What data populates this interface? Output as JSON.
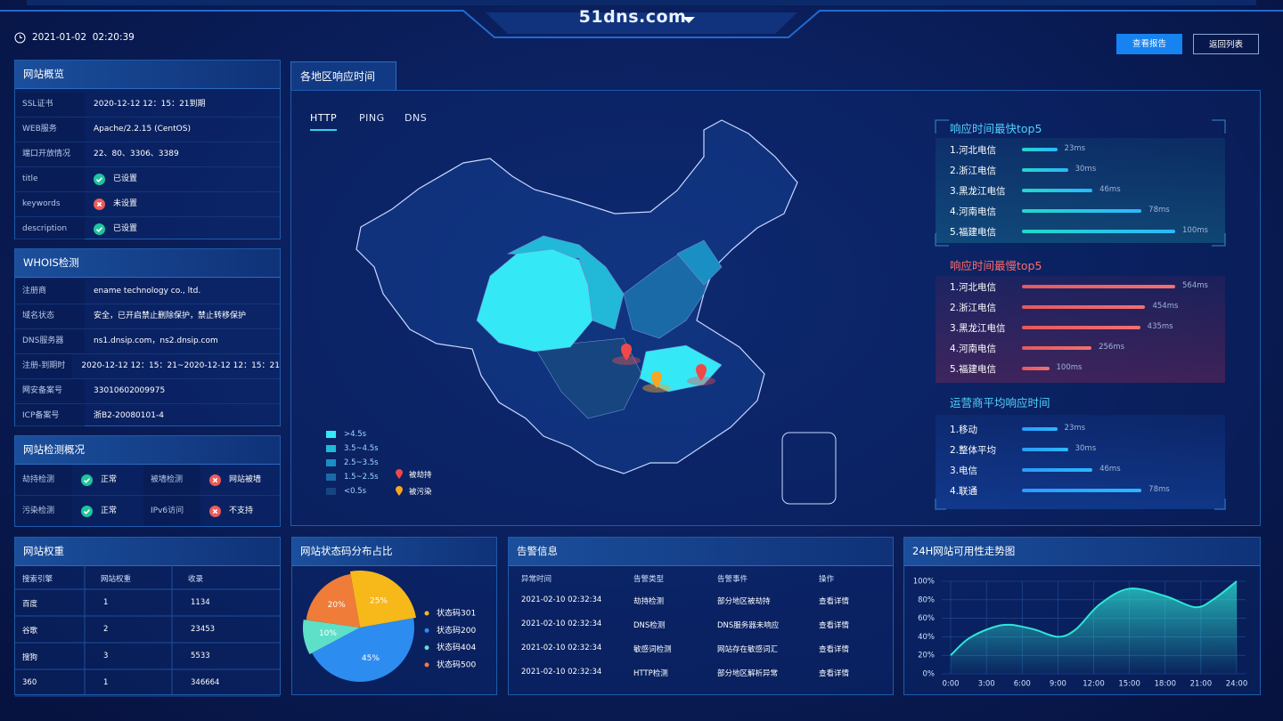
{
  "header": {
    "title": "51dns.com",
    "datetime": "2021-01-02  02:20:39",
    "buttons": [
      "查看报告",
      "返回列表"
    ]
  },
  "overview": {
    "title": "网站概览",
    "rows": [
      [
        "SSL证书",
        "2020-12-12 12：15：21到期"
      ],
      [
        "WEB服务",
        "Apache/2.2.15 (CentOS)"
      ],
      [
        "端口开放情况",
        "22、80、3306、3389"
      ],
      [
        "title",
        "已设置"
      ],
      [
        "keywords",
        "未设置"
      ],
      [
        "description",
        "已设置"
      ]
    ]
  },
  "whois": {
    "title": "WHOIS检测",
    "rows": [
      [
        "注册商",
        "ename technology co., ltd."
      ],
      [
        "域名状态",
        "安全，已开启禁止删除保护，禁止转移保护"
      ],
      [
        "DNS服务器",
        "ns1.dnsip.com，ns2.dnsip.com"
      ],
      [
        "注册-到期时间",
        "2020-12-12 12：15：21~2020-12-12 12：15：21"
      ],
      [
        "网安备案号",
        "33010602009975"
      ],
      [
        "ICP备案号",
        "浙B2-20080101-4"
      ]
    ]
  },
  "detection": {
    "title": "网站检测概况",
    "rows": [
      [
        "劫持检测",
        "正常",
        "被墙检测",
        "网站被墙"
      ],
      [
        "污染检测",
        "正常",
        "IPv6访问",
        "不支持"
      ]
    ]
  },
  "map": {
    "title": "各地区响应时间",
    "tabs": [
      "HTTP",
      "PING",
      "DNS"
    ],
    "legend": [
      ">4.5s",
      "3.5~4.5s",
      "2.5~3.5s",
      "1.5~2.5s",
      "<0.5s"
    ],
    "markers": [
      "被劫持",
      "被污染"
    ]
  },
  "weights": {
    "title": "网站权重",
    "columns": [
      "搜索引擎",
      "网站权重",
      "收录"
    ],
    "rows": [
      [
        "百度",
        1,
        1134
      ],
      [
        "谷歌",
        2,
        23453
      ],
      [
        "搜狗",
        3,
        5533
      ],
      [
        "360",
        1,
        346664
      ]
    ]
  },
  "alerts": {
    "title": "告警信息",
    "columns": [
      "异常时间",
      "告警类型",
      "告警事件",
      "操作"
    ],
    "rows": [
      [
        "2021-02-10 02:32:34",
        "劫持检测",
        "部分地区被劫持",
        "查看详情"
      ],
      [
        "2021-02-10 02:32:34",
        "DNS检测",
        "DNS服务器未响应",
        "查看详情"
      ],
      [
        "2021-02-10 02:32:34",
        "敏感词检测",
        "网站存在敏感词汇",
        "查看详情"
      ],
      [
        "2021-02-10 02:32:34",
        "HTTP检测",
        "部分地区解析异常",
        "查看详情"
      ]
    ]
  },
  "chart_data": [
    {
      "type": "bar",
      "title": "响应时间最快top5",
      "categories": [
        "1.河北电信",
        "2.浙江电信",
        "3.黑龙江电信",
        "4.河南电信",
        "5.福建电信"
      ],
      "values": [
        23,
        30,
        46,
        78,
        100
      ],
      "value_labels": [
        "23ms",
        "30ms",
        "46ms",
        "78ms",
        "100ms"
      ],
      "color": "#22d8c8"
    },
    {
      "type": "bar",
      "title": "响应时间最慢top5",
      "categories": [
        "1.河北电信",
        "2.浙江电信",
        "3.黑龙江电信",
        "4.河南电信",
        "5.福建电信"
      ],
      "values": [
        564,
        454,
        435,
        256,
        100
      ],
      "value_labels": [
        "564ms",
        "454ms",
        "435ms",
        "256ms",
        "100ms"
      ],
      "color": "#e8585a"
    },
    {
      "type": "bar",
      "title": "运营商平均响应时间",
      "categories": [
        "1.移动",
        "2.整体平均",
        "3.电信",
        "4.联通"
      ],
      "values": [
        23,
        30,
        46,
        78
      ],
      "value_labels": [
        "23ms",
        "30ms",
        "46ms",
        "78ms"
      ],
      "color": "#2a9cff"
    },
    {
      "type": "pie",
      "title": "网站状态码分布占比",
      "categories": [
        "状态码301",
        "状态码200",
        "状态码404",
        "状态码500"
      ],
      "values": [
        25,
        45,
        10,
        20
      ],
      "value_labels": [
        "25%",
        "45%",
        "10%",
        "20%"
      ],
      "colors": [
        "#f7b81a",
        "#2d8cf0",
        "#5ee0c8",
        "#f07c3a"
      ]
    },
    {
      "type": "line",
      "title": "24H网站可用性走势图",
      "x": [
        0,
        1.5,
        3.5,
        5,
        7,
        9,
        10.5,
        12.5,
        15,
        18,
        20.5,
        22,
        24
      ],
      "values": [
        20,
        38,
        50,
        53,
        48,
        40,
        48,
        75,
        92,
        84,
        72,
        80,
        100
      ],
      "color": "#2ee6d6",
      "xlim": [
        0,
        24
      ],
      "ylim": [
        0,
        100
      ],
      "xticks": [
        {
          "value": 0,
          "label": "0:00"
        },
        {
          "value": 3,
          "label": "3:00"
        },
        {
          "value": 6,
          "label": "6:00"
        },
        {
          "value": 9,
          "label": "9:00"
        },
        {
          "value": 12,
          "label": "12:00"
        },
        {
          "value": 15,
          "label": "15:00"
        },
        {
          "value": 18,
          "label": "18:00"
        },
        {
          "value": 21,
          "label": "21:00"
        },
        {
          "value": 24,
          "label": "24:00"
        }
      ],
      "yticks": [
        {
          "value": 0,
          "label": "0%"
        },
        {
          "value": 20,
          "label": "20%"
        },
        {
          "value": 40,
          "label": "40%"
        },
        {
          "value": 60,
          "label": "60%"
        },
        {
          "value": 80,
          "label": "80%"
        },
        {
          "value": 100,
          "label": "100%"
        }
      ],
      "grid": true
    }
  ]
}
